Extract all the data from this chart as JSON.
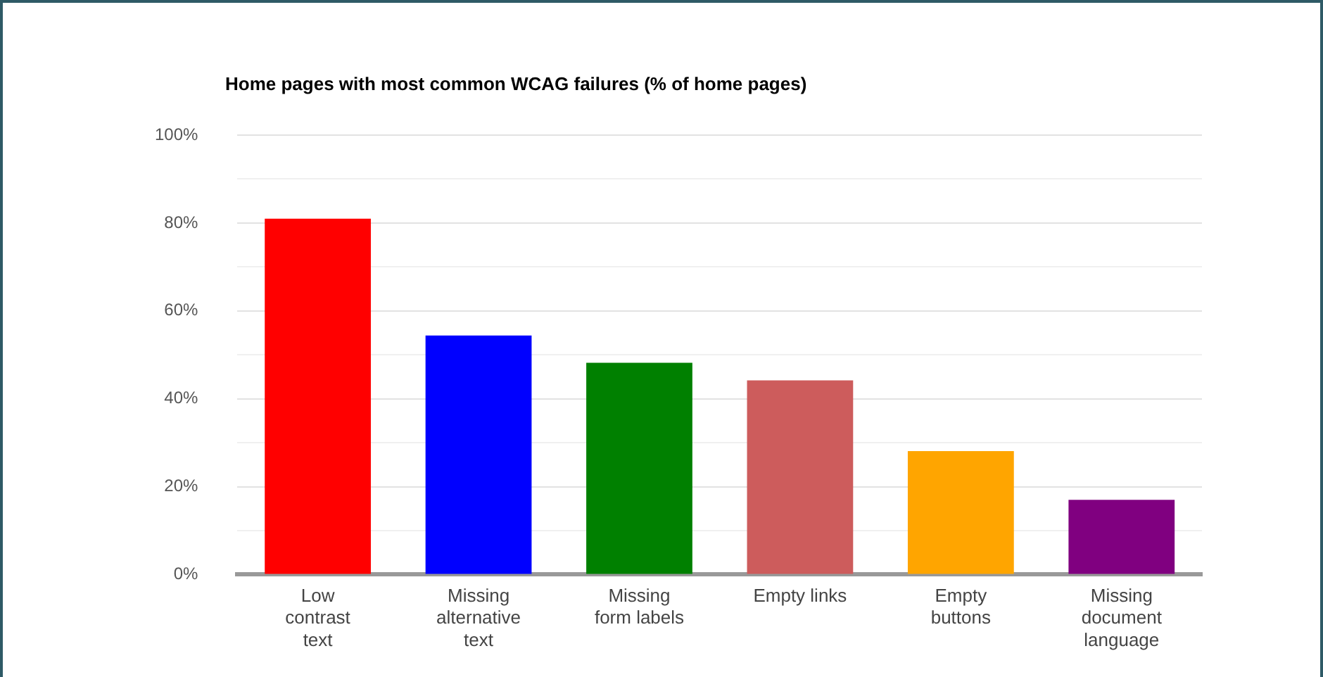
{
  "chart_data": {
    "type": "bar",
    "title": "Home pages with most common WCAG failures (% of home pages)",
    "categories": [
      "Low contrast text",
      "Missing alternative text",
      "Missing form labels",
      "Empty links",
      "Empty buttons",
      "Missing document language"
    ],
    "values": [
      81,
      54.4,
      48.2,
      44.2,
      28.1,
      17
    ],
    "colors": [
      "#ff0000",
      "#0000ff",
      "#008000",
      "#cd5c5c",
      "#ffa500",
      "#800080"
    ],
    "ylim": [
      0,
      100
    ],
    "yticks": [
      {
        "value": 0,
        "label": "0%"
      },
      {
        "value": 10,
        "label": null
      },
      {
        "value": 20,
        "label": "20%"
      },
      {
        "value": 30,
        "label": null
      },
      {
        "value": 40,
        "label": "40%"
      },
      {
        "value": 50,
        "label": null
      },
      {
        "value": 60,
        "label": "60%"
      },
      {
        "value": 70,
        "label": null
      },
      {
        "value": 80,
        "label": "80%"
      },
      {
        "value": 90,
        "label": null
      },
      {
        "value": 100,
        "label": "100%"
      }
    ],
    "grid": "y",
    "legend": false
  }
}
